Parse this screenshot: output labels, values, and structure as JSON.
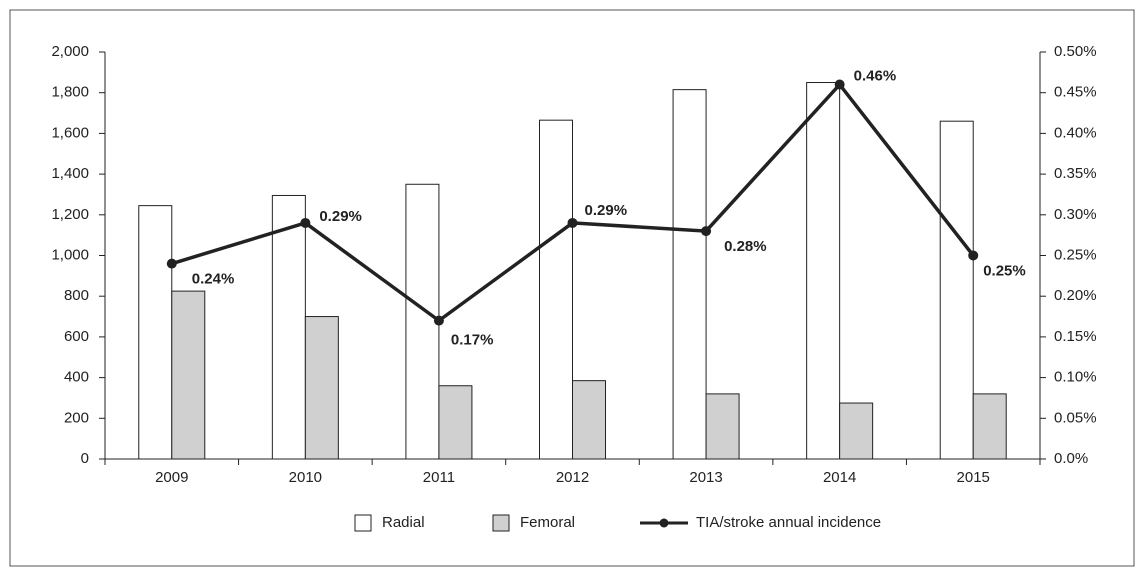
{
  "chart_data": {
    "type": "bar-line",
    "categories": [
      "2009",
      "2010",
      "2011",
      "2012",
      "2013",
      "2014",
      "2015"
    ],
    "series": [
      {
        "name": "Radial",
        "color": "#ffffff",
        "values": [
          1245,
          1295,
          1350,
          1665,
          1815,
          1850,
          1660
        ]
      },
      {
        "name": "Femoral",
        "color": "#d0d0d0",
        "values": [
          825,
          700,
          360,
          385,
          320,
          275,
          320
        ]
      },
      {
        "name": "TIA/stroke annual incidence",
        "color": "#222222",
        "axis": "y2",
        "type": "line",
        "values": [
          0.24,
          0.29,
          0.17,
          0.29,
          0.28,
          0.46,
          0.25
        ],
        "value_labels": [
          "0.24%",
          "0.29%",
          "0.17%",
          "0.29%",
          "0.28%",
          "0.46%",
          "0.25%"
        ]
      }
    ],
    "ylim": [
      0,
      2000
    ],
    "yticks": [
      0,
      200,
      400,
      600,
      800,
      {
        "value": 1000,
        "label": "1,000"
      },
      {
        "value": 1200,
        "label": "1,200"
      },
      {
        "value": 1400,
        "label": "1,400"
      },
      {
        "value": 1600,
        "label": "1,600"
      },
      {
        "value": 1800,
        "label": "1,800"
      },
      {
        "value": 2000,
        "label": "2,000"
      }
    ],
    "y2lim": [
      0,
      0.5
    ],
    "y2ticks": [
      {
        "value": 0,
        "label": "0.0%"
      },
      {
        "value": 0.05,
        "label": "0.05%"
      },
      {
        "value": 0.1,
        "label": "0.10%"
      },
      {
        "value": 0.15,
        "label": "0.15%"
      },
      {
        "value": 0.2,
        "label": "0.20%"
      },
      {
        "value": 0.25,
        "label": "0.25%"
      },
      {
        "value": 0.3,
        "label": "0.30%"
      },
      {
        "value": 0.35,
        "label": "0.35%"
      },
      {
        "value": 0.4,
        "label": "0.40%"
      },
      {
        "value": 0.45,
        "label": "0.45%"
      },
      {
        "value": 0.5,
        "label": "0.50%"
      }
    ],
    "grid": false,
    "legend": "bottom"
  }
}
